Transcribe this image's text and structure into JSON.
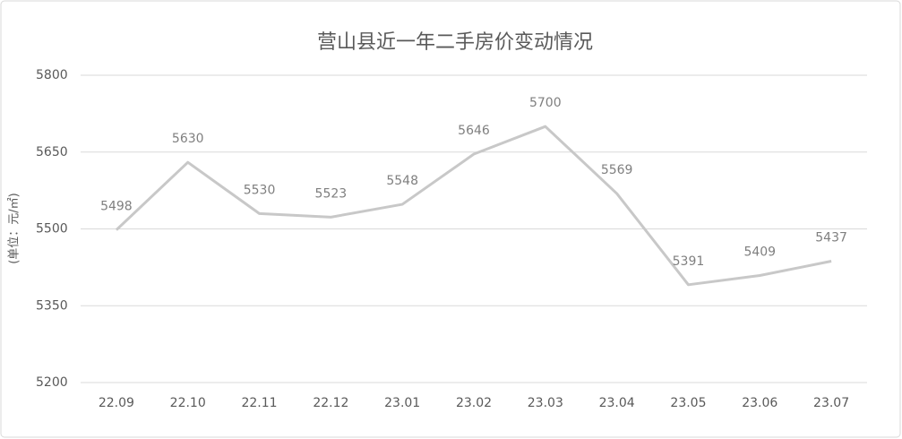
{
  "chart_data": {
    "type": "line",
    "title": "营山县近一年二手房价变动情况",
    "y_label": "(单位：元/㎡)",
    "categories": [
      "22.09",
      "22.10",
      "22.11",
      "22.12",
      "23.01",
      "23.02",
      "23.03",
      "23.04",
      "23.05",
      "23.06",
      "23.07"
    ],
    "values": [
      5498,
      5630,
      5530,
      5523,
      5548,
      5646,
      5700,
      5569,
      5391,
      5409,
      5437
    ],
    "color": "#c8c8c8",
    "ylim": [
      5200,
      5800
    ],
    "yticks": [
      5200,
      5350,
      5500,
      5650,
      5800
    ],
    "grid": true,
    "data_labels": true
  }
}
